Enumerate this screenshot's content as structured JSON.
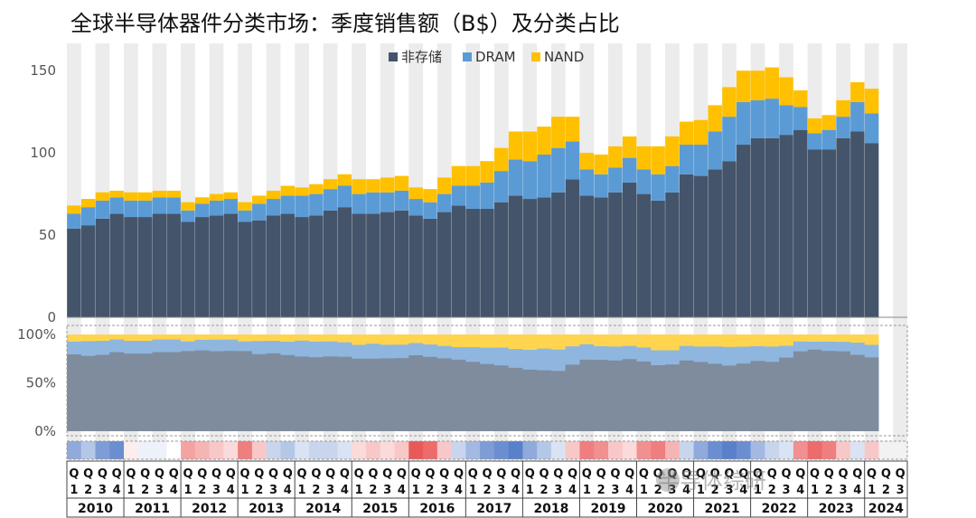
{
  "title": "全球半导体器件分类市场：季度销售额（B$）及分类占比",
  "watermark": "半导体综研",
  "colors": {
    "non_memory": "#44546a",
    "dram": "#5b9bd5",
    "nand": "#ffc000"
  },
  "chart_data": [
    {
      "type": "bar",
      "stacked": true,
      "title": "全球半导体器件分类市场：季度销售额（B$）及分类占比",
      "ylim": [
        0,
        160
      ],
      "yticks": [
        "0",
        "50",
        "100",
        "150"
      ],
      "legend": {
        "placement": "top-center"
      },
      "series": [
        {
          "name": "非存储",
          "values": [
            54,
            56,
            60,
            63,
            61,
            61,
            63,
            63,
            58,
            61,
            62,
            63,
            58,
            59,
            62,
            63,
            61,
            62,
            65,
            67,
            63,
            63,
            64,
            65,
            62,
            60,
            64,
            68,
            66,
            66,
            70,
            74,
            72,
            73,
            76,
            84,
            74,
            73,
            76,
            82,
            75,
            71,
            76,
            87,
            86,
            90,
            95,
            105,
            109,
            109,
            111,
            114,
            102,
            102,
            109,
            113,
            106,
            null,
            null
          ]
        },
        {
          "name": "DRAM",
          "values": [
            9,
            11,
            11,
            10,
            10,
            10,
            10,
            10,
            7,
            8,
            9,
            9,
            7,
            10,
            10,
            11,
            13,
            13,
            13,
            13,
            12,
            13,
            12,
            12,
            10,
            10,
            11,
            12,
            14,
            16,
            19,
            22,
            23,
            26,
            27,
            23,
            16,
            14,
            15,
            15,
            15,
            16,
            16,
            18,
            19,
            23,
            27,
            26,
            23,
            24,
            18,
            14,
            10,
            12,
            13,
            18,
            18,
            null,
            null
          ]
        },
        {
          "name": "NAND",
          "values": [
            5,
            5,
            5,
            4,
            5,
            5,
            4,
            4,
            5,
            4,
            4,
            4,
            5,
            5,
            5,
            6,
            5,
            6,
            6,
            7,
            9,
            8,
            9,
            9,
            7,
            8,
            10,
            12,
            12,
            13,
            14,
            17,
            18,
            17,
            19,
            15,
            10,
            12,
            13,
            13,
            14,
            17,
            18,
            14,
            15,
            16,
            18,
            19,
            18,
            19,
            17,
            10,
            9,
            9,
            10,
            12,
            15,
            null,
            null
          ]
        }
      ]
    },
    {
      "type": "area",
      "stacked": true,
      "percent": true,
      "ylim": [
        0,
        100
      ],
      "yticks": [
        "0%",
        "50%",
        "100%"
      ]
    },
    {
      "type": "heatmap",
      "description_values": "quarter-over-quarter growth colour band",
      "values": [
        0.6,
        0.4,
        0.7,
        0.8,
        -0.1,
        0.1,
        0.1,
        0,
        -0.5,
        -0.4,
        -0.3,
        -0.2,
        -0.7,
        -0.3,
        0.3,
        0.4,
        0.2,
        0.3,
        0.3,
        0.2,
        -0.2,
        -0.3,
        -0.2,
        -0.3,
        -0.9,
        -0.8,
        -0.3,
        0.3,
        0.5,
        0.7,
        0.8,
        0.9,
        0.6,
        0.4,
        0.2,
        -0.3,
        -0.7,
        -0.6,
        -0.3,
        -0.2,
        -0.6,
        -0.7,
        -0.4,
        0.3,
        0.6,
        0.8,
        0.9,
        0.8,
        0.5,
        0.3,
        0.2,
        -0.6,
        -0.8,
        -0.7,
        -0.3,
        0.2,
        -0.3,
        null,
        null
      ]
    }
  ],
  "axis": {
    "quarters": [
      "Q1",
      "Q2",
      "Q3",
      "Q4"
    ],
    "years": [
      "2010",
      "2011",
      "2012",
      "2013",
      "2014",
      "2015",
      "2016",
      "2017",
      "2018",
      "2019",
      "2020",
      "2021",
      "2022",
      "2023",
      "2024"
    ]
  }
}
